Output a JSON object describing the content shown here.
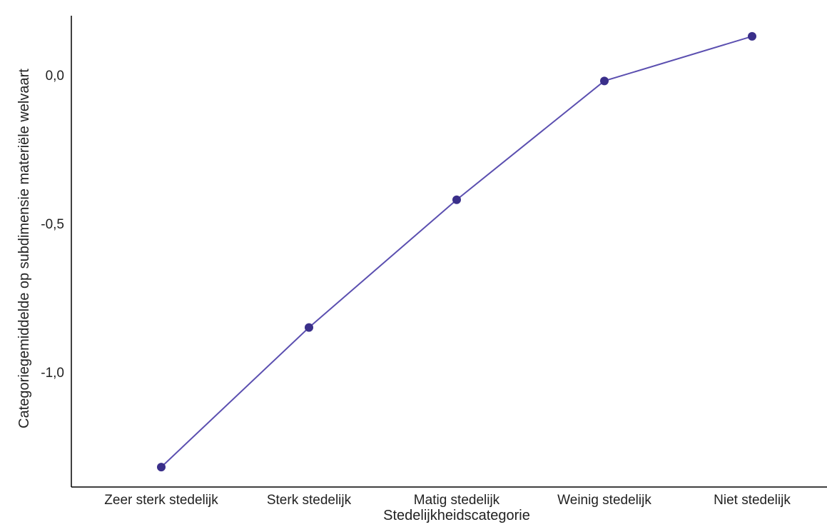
{
  "chart_data": {
    "type": "line",
    "title": "",
    "xlabel": "Stedelijkheidscategorie",
    "ylabel": "Categoriegemiddelde op subdimensie materiële welvaart",
    "categories": [
      "Zeer sterk stedelijk",
      "Sterk stedelijk",
      "Matig stedelijk",
      "Weinig stedelijk",
      "Niet stedelijk"
    ],
    "series": [
      {
        "values": [
          -1.32,
          -0.85,
          -0.42,
          -0.02,
          0.13
        ]
      }
    ],
    "yticks": [
      0.0,
      -0.5,
      -1.0
    ],
    "ytick_labels": [
      "0,0",
      "-0,5",
      "-1,0"
    ],
    "ylim": [
      -1.38,
      0.2
    ],
    "grid": false,
    "legend": "none",
    "colors": {
      "line": "#5B4FB0",
      "marker": "#3A2F8A",
      "axis": "#000000"
    }
  }
}
